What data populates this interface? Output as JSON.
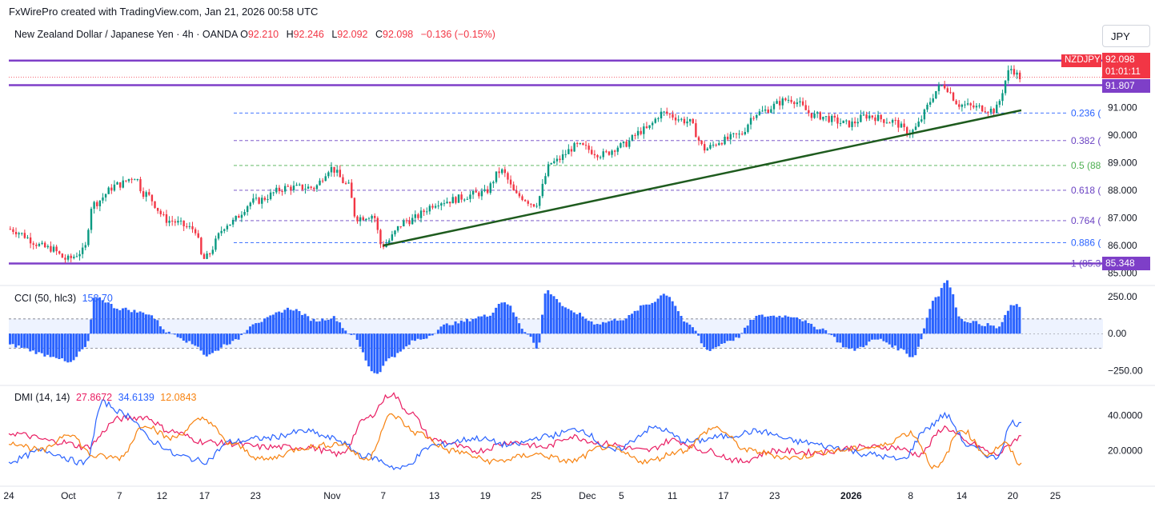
{
  "header": "FxWirePro created with TradingView.com, Jan 21, 2026 00:58 UTC",
  "legend": {
    "symbol": "New Zealand Dollar / Japanese Yen · 4h · OANDA",
    "o_label": "O",
    "o_value": "92.210",
    "h_label": "H",
    "h_value": "92.246",
    "l_label": "L",
    "l_value": "92.092",
    "c_label": "C",
    "c_value": "92.098",
    "change": "−0.136 (−0.15%)"
  },
  "currency_button": "JPY",
  "price_tags": {
    "symbol_tag": "NZDJPY",
    "last_price": "92.098",
    "countdown": "01:01:11",
    "level_upper": "91.807",
    "level_lower": "85.348"
  },
  "colors": {
    "up": "#089981",
    "down": "#f23645",
    "level": "#7e3fc8",
    "trend": "#1e5b1e",
    "cci": "#2962ff",
    "di_plus": "#2962ff",
    "di_minus": "#f7820f",
    "adx": "#e91e63"
  },
  "chart_data": [
    {
      "type": "candlestick",
      "title": "New Zealand Dollar / Japanese Yen · 4h · OANDA",
      "ylim": [
        84.9,
        93.3
      ],
      "y_ticks": [
        "91.000",
        "90.000",
        "89.000",
        "88.000",
        "87.000",
        "86.000",
        "85.000"
      ],
      "x_ticks": [
        "24",
        "Oct",
        "7",
        "12",
        "17",
        "23",
        "Nov",
        "7",
        "13",
        "19",
        "25",
        "Dec",
        "5",
        "11",
        "17",
        "23",
        "2026",
        "8",
        "14",
        "20",
        "25"
      ],
      "anchors": [
        {
          "x": "Sep 24",
          "y": 86.6
        },
        {
          "x": "Sep 29",
          "y": 85.9
        },
        {
          "x": "Oct 1",
          "y": 85.5
        },
        {
          "x": "Oct 3",
          "y": 85.8
        },
        {
          "x": "Oct 4",
          "y": 87.5
        },
        {
          "x": "Oct 7",
          "y": 88.2
        },
        {
          "x": "Oct 9",
          "y": 88.5
        },
        {
          "x": "Oct 10",
          "y": 87.9
        },
        {
          "x": "Oct 13",
          "y": 86.9
        },
        {
          "x": "Oct 16",
          "y": 86.6
        },
        {
          "x": "Oct 17",
          "y": 85.5
        },
        {
          "x": "Oct 20",
          "y": 86.8
        },
        {
          "x": "Oct 23",
          "y": 87.6
        },
        {
          "x": "Oct 27",
          "y": 88.1
        },
        {
          "x": "Oct 30",
          "y": 88.1
        },
        {
          "x": "Nov 1",
          "y": 88.8
        },
        {
          "x": "Nov 3",
          "y": 88.2
        },
        {
          "x": "Nov 4",
          "y": 87.0
        },
        {
          "x": "Nov 6",
          "y": 87.1
        },
        {
          "x": "Nov 7",
          "y": 86.0
        },
        {
          "x": "Nov 10",
          "y": 86.9
        },
        {
          "x": "Nov 14",
          "y": 87.6
        },
        {
          "x": "Nov 19",
          "y": 87.9
        },
        {
          "x": "Nov 21",
          "y": 88.7
        },
        {
          "x": "Nov 23",
          "y": 87.8
        },
        {
          "x": "Nov 25",
          "y": 87.5
        },
        {
          "x": "Nov 27",
          "y": 89.0
        },
        {
          "x": "Nov 30",
          "y": 89.6
        },
        {
          "x": "Dec 3",
          "y": 89.3
        },
        {
          "x": "Dec 5",
          "y": 89.6
        },
        {
          "x": "Dec 8",
          "y": 90.2
        },
        {
          "x": "Dec 10",
          "y": 90.8
        },
        {
          "x": "Dec 13",
          "y": 90.5
        },
        {
          "x": "Dec 15",
          "y": 89.5
        },
        {
          "x": "Dec 17",
          "y": 89.8
        },
        {
          "x": "Dec 19",
          "y": 90.0
        },
        {
          "x": "Dec 21",
          "y": 90.8
        },
        {
          "x": "Dec 25",
          "y": 91.3
        },
        {
          "x": "Dec 28",
          "y": 90.7
        },
        {
          "x": "Jan 1",
          "y": 90.4
        },
        {
          "x": "Jan 3",
          "y": 90.7
        },
        {
          "x": "Jan 6",
          "y": 90.5
        },
        {
          "x": "Jan 8",
          "y": 90.1
        },
        {
          "x": "Jan 12",
          "y": 91.8
        },
        {
          "x": "Jan 14",
          "y": 91.1
        },
        {
          "x": "Jan 16",
          "y": 91.0
        },
        {
          "x": "Jan 18",
          "y": 90.9
        },
        {
          "x": "Jan 20",
          "y": 92.4
        },
        {
          "x": "Jan 21",
          "y": 92.098
        }
      ],
      "horizontal_levels": [
        92.7,
        91.807,
        85.348
      ],
      "trendline": [
        {
          "x": "Nov 7",
          "y": 86.0
        },
        {
          "x": "Jan 21",
          "y": 90.9
        }
      ],
      "fib_levels": [
        {
          "label": "0.236 (",
          "y": 90.8,
          "color": "#2962ff"
        },
        {
          "label": "0.382 (",
          "y": 89.8,
          "color": "#6a42c2"
        },
        {
          "label": "0.5 (88",
          "y": 88.9,
          "color": "#4caf50"
        },
        {
          "label": "0.618 (",
          "y": 88.0,
          "color": "#6a42c2"
        },
        {
          "label": "0.764 (",
          "y": 86.9,
          "color": "#6a42c2"
        },
        {
          "label": "0.886 (",
          "y": 86.1,
          "color": "#2962ff"
        },
        {
          "label": "1 (85.3",
          "y": 85.348,
          "color": "#6a42c2"
        }
      ]
    },
    {
      "type": "bar",
      "title": "CCI (50, hlc3)",
      "value": "158.70",
      "ylim": [
        -330,
        300
      ],
      "bands": [
        100,
        -100
      ],
      "y_ticks": [
        "250.00",
        "0.00",
        "−250.00"
      ],
      "anchors": [
        {
          "x": "Sep 24",
          "y": -80
        },
        {
          "x": "Sep 29",
          "y": -150
        },
        {
          "x": "Oct 1",
          "y": -200
        },
        {
          "x": "Oct 3",
          "y": -90
        },
        {
          "x": "Oct 4",
          "y": 250
        },
        {
          "x": "Oct 7",
          "y": 170
        },
        {
          "x": "Oct 10",
          "y": 140
        },
        {
          "x": "Oct 13",
          "y": 0
        },
        {
          "x": "Oct 16",
          "y": -80
        },
        {
          "x": "Oct 17",
          "y": -150
        },
        {
          "x": "Oct 20",
          "y": -60
        },
        {
          "x": "Oct 23",
          "y": 80
        },
        {
          "x": "Oct 27",
          "y": 170
        },
        {
          "x": "Oct 30",
          "y": 90
        },
        {
          "x": "Nov 1",
          "y": 110
        },
        {
          "x": "Nov 3",
          "y": 0
        },
        {
          "x": "Nov 6",
          "y": -270
        },
        {
          "x": "Nov 8",
          "y": -150
        },
        {
          "x": "Nov 11",
          "y": -40
        },
        {
          "x": "Nov 15",
          "y": 70
        },
        {
          "x": "Nov 19",
          "y": 120
        },
        {
          "x": "Nov 21",
          "y": 220
        },
        {
          "x": "Nov 24",
          "y": 0
        },
        {
          "x": "Nov 25",
          "y": -110
        },
        {
          "x": "Nov 26",
          "y": 290
        },
        {
          "x": "Nov 29",
          "y": 150
        },
        {
          "x": "Dec 2",
          "y": 70
        },
        {
          "x": "Dec 5",
          "y": 100
        },
        {
          "x": "Dec 8",
          "y": 200
        },
        {
          "x": "Dec 10",
          "y": 270
        },
        {
          "x": "Dec 13",
          "y": 50
        },
        {
          "x": "Dec 15",
          "y": -110
        },
        {
          "x": "Dec 18",
          "y": -40
        },
        {
          "x": "Dec 21",
          "y": 120
        },
        {
          "x": "Dec 25",
          "y": 120
        },
        {
          "x": "Dec 28",
          "y": 40
        },
        {
          "x": "Jan 1",
          "y": -110
        },
        {
          "x": "Jan 4",
          "y": -40
        },
        {
          "x": "Jan 7",
          "y": -110
        },
        {
          "x": "Jan 8",
          "y": -160
        },
        {
          "x": "Jan 11",
          "y": 260
        },
        {
          "x": "Jan 12",
          "y": 360
        },
        {
          "x": "Jan 14",
          "y": 90
        },
        {
          "x": "Jan 17",
          "y": 60
        },
        {
          "x": "Jan 18",
          "y": 40
        },
        {
          "x": "Jan 20",
          "y": 200
        },
        {
          "x": "Jan 21",
          "y": 158.7
        }
      ]
    },
    {
      "type": "line",
      "title": "DMI (14, 14)",
      "ylim": [
        0,
        55
      ],
      "y_ticks": [
        "40.0000",
        "20.0000"
      ],
      "series": [
        {
          "value": "27.8672",
          "color": "#e91e63",
          "values": [
            {
              "x": "Sep 24",
              "y": 30
            },
            {
              "x": "Sep 30",
              "y": 25
            },
            {
              "x": "Oct 3",
              "y": 22
            },
            {
              "x": "Oct 7",
              "y": 38
            },
            {
              "x": "Oct 10",
              "y": 39
            },
            {
              "x": "Oct 13",
              "y": 31
            },
            {
              "x": "Oct 17",
              "y": 25
            },
            {
              "x": "Oct 20",
              "y": 24
            },
            {
              "x": "Oct 24",
              "y": 22
            },
            {
              "x": "Oct 29",
              "y": 22
            },
            {
              "x": "Nov 2",
              "y": 18
            },
            {
              "x": "Nov 5",
              "y": 38
            },
            {
              "x": "Nov 8",
              "y": 52
            },
            {
              "x": "Nov 10",
              "y": 42
            },
            {
              "x": "Nov 13",
              "y": 26
            },
            {
              "x": "Nov 18",
              "y": 20
            },
            {
              "x": "Nov 22",
              "y": 25
            },
            {
              "x": "Nov 26",
              "y": 22
            },
            {
              "x": "Nov 29",
              "y": 28
            },
            {
              "x": "Dec 3",
              "y": 24
            },
            {
              "x": "Dec 8",
              "y": 20
            },
            {
              "x": "Dec 11",
              "y": 26
            },
            {
              "x": "Dec 15",
              "y": 20
            },
            {
              "x": "Dec 19",
              "y": 14
            },
            {
              "x": "Dec 23",
              "y": 20
            },
            {
              "x": "Dec 28",
              "y": 19
            },
            {
              "x": "Jan 2",
              "y": 22
            },
            {
              "x": "Jan 6",
              "y": 22
            },
            {
              "x": "Jan 9",
              "y": 18
            },
            {
              "x": "Jan 12",
              "y": 33
            },
            {
              "x": "Jan 15",
              "y": 24
            },
            {
              "x": "Jan 18",
              "y": 18
            },
            {
              "x": "Jan 21",
              "y": 27.8672
            }
          ]
        },
        {
          "value": "34.6139",
          "color": "#2962ff",
          "values": [
            {
              "x": "Sep 24",
              "y": 14
            },
            {
              "x": "Sep 28",
              "y": 20
            },
            {
              "x": "Oct 3",
              "y": 13
            },
            {
              "x": "Oct 5",
              "y": 47
            },
            {
              "x": "Oct 8",
              "y": 40
            },
            {
              "x": "Oct 11",
              "y": 25
            },
            {
              "x": "Oct 14",
              "y": 17
            },
            {
              "x": "Oct 17",
              "y": 14
            },
            {
              "x": "Oct 20",
              "y": 25
            },
            {
              "x": "Oct 24",
              "y": 27
            },
            {
              "x": "Oct 29",
              "y": 31
            },
            {
              "x": "Nov 1",
              "y": 27
            },
            {
              "x": "Nov 5",
              "y": 17
            },
            {
              "x": "Nov 9",
              "y": 10
            },
            {
              "x": "Nov 13",
              "y": 23
            },
            {
              "x": "Nov 18",
              "y": 27
            },
            {
              "x": "Nov 22",
              "y": 23
            },
            {
              "x": "Nov 26",
              "y": 28
            },
            {
              "x": "Nov 30",
              "y": 32
            },
            {
              "x": "Dec 4",
              "y": 20
            },
            {
              "x": "Dec 9",
              "y": 33
            },
            {
              "x": "Dec 13",
              "y": 25
            },
            {
              "x": "Dec 17",
              "y": 28
            },
            {
              "x": "Dec 21",
              "y": 31
            },
            {
              "x": "Dec 26",
              "y": 25
            },
            {
              "x": "Dec 30",
              "y": 22
            },
            {
              "x": "Jan 3",
              "y": 18
            },
            {
              "x": "Jan 7",
              "y": 15
            },
            {
              "x": "Jan 10",
              "y": 33
            },
            {
              "x": "Jan 12",
              "y": 40
            },
            {
              "x": "Jan 15",
              "y": 22
            },
            {
              "x": "Jan 18",
              "y": 16
            },
            {
              "x": "Jan 20",
              "y": 36
            },
            {
              "x": "Jan 21",
              "y": 34.6139
            }
          ]
        },
        {
          "value": "12.0843",
          "color": "#f7820f",
          "values": [
            {
              "x": "Sep 24",
              "y": 25
            },
            {
              "x": "Sep 28",
              "y": 20
            },
            {
              "x": "Oct 1",
              "y": 30
            },
            {
              "x": "Oct 4",
              "y": 17
            },
            {
              "x": "Oct 7",
              "y": 16
            },
            {
              "x": "Oct 10",
              "y": 35
            },
            {
              "x": "Oct 13",
              "y": 27
            },
            {
              "x": "Oct 17",
              "y": 38
            },
            {
              "x": "Oct 20",
              "y": 24
            },
            {
              "x": "Oct 24",
              "y": 15
            },
            {
              "x": "Oct 29",
              "y": 22
            },
            {
              "x": "Nov 2",
              "y": 24
            },
            {
              "x": "Nov 5",
              "y": 15
            },
            {
              "x": "Nov 8",
              "y": 40
            },
            {
              "x": "Nov 11",
              "y": 30
            },
            {
              "x": "Nov 15",
              "y": 20
            },
            {
              "x": "Nov 20",
              "y": 14
            },
            {
              "x": "Nov 25",
              "y": 18
            },
            {
              "x": "Nov 29",
              "y": 14
            },
            {
              "x": "Dec 3",
              "y": 22
            },
            {
              "x": "Dec 8",
              "y": 14
            },
            {
              "x": "Dec 12",
              "y": 20
            },
            {
              "x": "Dec 16",
              "y": 33
            },
            {
              "x": "Dec 20",
              "y": 20
            },
            {
              "x": "Dec 25",
              "y": 16
            },
            {
              "x": "Dec 30",
              "y": 20
            },
            {
              "x": "Jan 4",
              "y": 22
            },
            {
              "x": "Jan 8",
              "y": 30
            },
            {
              "x": "Jan 11",
              "y": 10
            },
            {
              "x": "Jan 14",
              "y": 32
            },
            {
              "x": "Jan 17",
              "y": 18
            },
            {
              "x": "Jan 19",
              "y": 24
            },
            {
              "x": "Jan 21",
              "y": 12.0843
            }
          ]
        }
      ]
    }
  ]
}
